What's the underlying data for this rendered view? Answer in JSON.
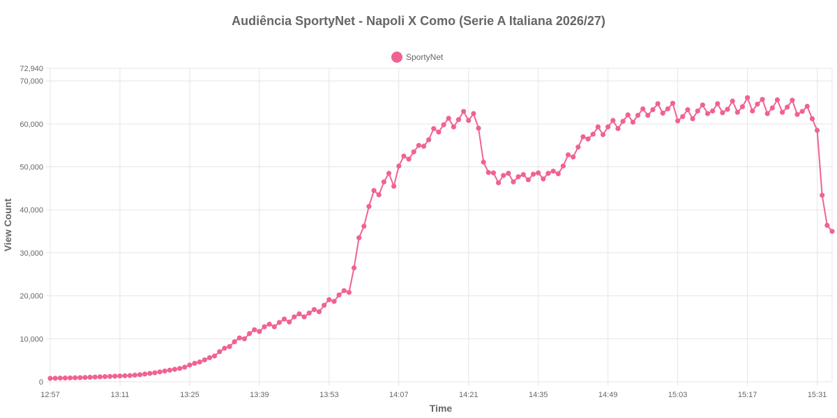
{
  "chart_data": {
    "type": "line",
    "title": "Audiência SportyNet - Napoli X Como (Serie A Italiana 2026/27)",
    "xlabel": "Time",
    "ylabel": "View Count",
    "ylim": [
      0,
      72940
    ],
    "y_ticks": [
      "0",
      "10,000",
      "20,000",
      "30,000",
      "40,000",
      "50,000",
      "60,000",
      "70,000",
      "72,940"
    ],
    "y_tick_values": [
      0,
      10000,
      20000,
      30000,
      40000,
      50000,
      60000,
      70000,
      72940
    ],
    "x_start": "12:57",
    "x_interval_minutes": 1,
    "x_tick_labels": [
      "12:57",
      "13:11",
      "13:25",
      "13:39",
      "13:53",
      "14:07",
      "14:21",
      "14:35",
      "14:49",
      "15:03",
      "15:17",
      "15:31"
    ],
    "x_tick_positions": [
      0,
      14,
      28,
      42,
      56,
      70,
      84,
      98,
      112,
      126,
      140,
      154
    ],
    "legend_position": "top",
    "grid": true,
    "series": [
      {
        "name": "SportyNet",
        "color": "#f06292",
        "values": [
          800,
          820,
          850,
          870,
          900,
          930,
          960,
          1000,
          1050,
          1100,
          1150,
          1200,
          1250,
          1300,
          1350,
          1400,
          1450,
          1550,
          1650,
          1800,
          1950,
          2100,
          2300,
          2500,
          2700,
          2900,
          3100,
          3400,
          3900,
          4300,
          4600,
          5100,
          5600,
          6000,
          7000,
          7800,
          8200,
          9300,
          10200,
          10000,
          11200,
          12100,
          11700,
          12800,
          13400,
          12800,
          13800,
          14600,
          13900,
          15100,
          15800,
          15100,
          16000,
          16800,
          16300,
          17800,
          19100,
          18700,
          20200,
          21200,
          20800,
          26500,
          33500,
          36200,
          40800,
          44500,
          43500,
          46500,
          48500,
          45500,
          50200,
          52500,
          51800,
          53500,
          55000,
          54800,
          56300,
          58900,
          58100,
          59800,
          61300,
          59300,
          61000,
          62900,
          60800,
          62400,
          59000,
          51100,
          48700,
          48600,
          46300,
          48000,
          48500,
          46500,
          47700,
          48200,
          47000,
          48300,
          48600,
          47200,
          48500,
          49000,
          48400,
          50200,
          52800,
          52300,
          54600,
          57000,
          56500,
          57600,
          59300,
          57500,
          59300,
          60800,
          58900,
          60600,
          62100,
          60400,
          62000,
          63500,
          62000,
          63300,
          64700,
          62500,
          63500,
          64800,
          60700,
          61700,
          63300,
          61200,
          63000,
          64400,
          62400,
          63000,
          64700,
          62600,
          63400,
          65300,
          62700,
          64000,
          66100,
          63000,
          64600,
          65700,
          62400,
          63700,
          65600,
          62700,
          63900,
          65500,
          62200,
          62900,
          64100,
          61200,
          58500,
          43400,
          36400,
          35000
        ]
      }
    ]
  }
}
